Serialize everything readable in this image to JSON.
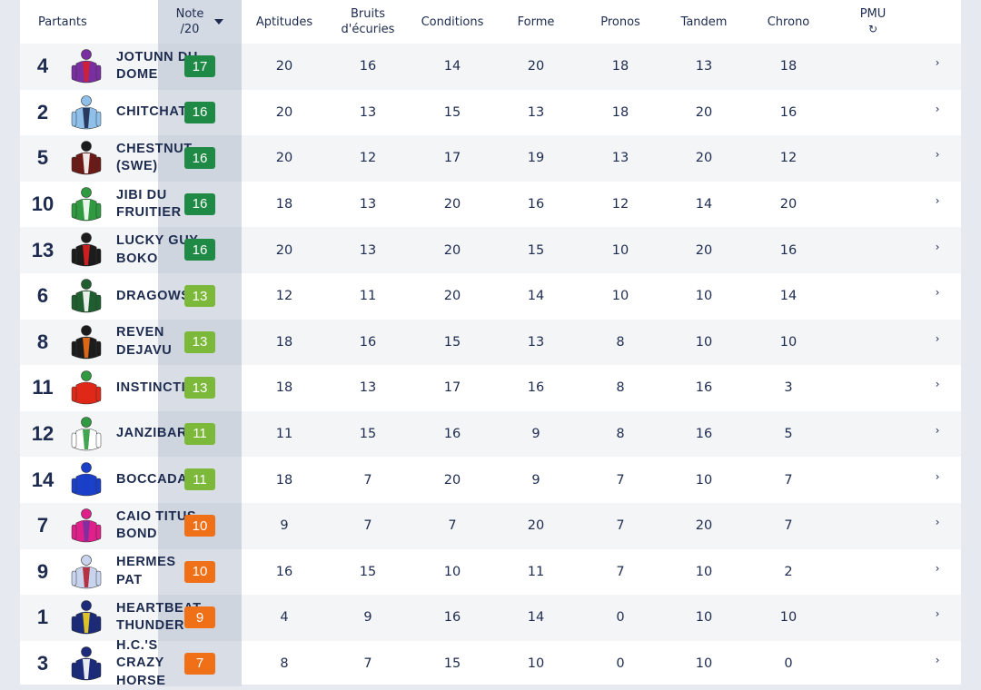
{
  "header": {
    "partants": "Partants",
    "note_line1": "Note",
    "note_line2": "/20",
    "aptitudes": "Aptitudes",
    "bruits_line1": "Bruits",
    "bruits_line2": "d'écuries",
    "conditions": "Conditions",
    "forme": "Forme",
    "pronos": "Pronos",
    "tandem": "Tandem",
    "chrono": "Chrono",
    "pmu": "PMU"
  },
  "colors": {
    "note_high": "#1f8a45",
    "note_mid": "#7cb83a",
    "note_low": "#f07018",
    "header_text": "#1d2b4f"
  },
  "rows": [
    {
      "num": "4",
      "name": "JOTUNN DU DOME",
      "note": "17",
      "note_level": "high",
      "silk": "purple-red-jockey-icon",
      "scores": [
        "20",
        "16",
        "14",
        "20",
        "18",
        "13",
        "18"
      ]
    },
    {
      "num": "2",
      "name": "CHITCHAT",
      "note": "16",
      "note_level": "high",
      "silk": "lightblue-jockey-icon",
      "scores": [
        "20",
        "13",
        "15",
        "13",
        "18",
        "20",
        "16"
      ]
    },
    {
      "num": "5",
      "name": "CHESTNUT (SWE)",
      "note": "16",
      "note_level": "high",
      "silk": "maroon-stripe-jockey-icon",
      "scores": [
        "20",
        "12",
        "17",
        "19",
        "13",
        "20",
        "12"
      ]
    },
    {
      "num": "10",
      "name": "JIBI DU FRUITIER",
      "note": "16",
      "note_level": "high",
      "silk": "green-jockey-icon",
      "scores": [
        "18",
        "13",
        "20",
        "16",
        "12",
        "14",
        "20"
      ]
    },
    {
      "num": "13",
      "name": "LUCKY GUY BOKO",
      "note": "16",
      "note_level": "high",
      "silk": "black-star-jockey-icon",
      "scores": [
        "20",
        "13",
        "20",
        "15",
        "10",
        "20",
        "16"
      ]
    },
    {
      "num": "6",
      "name": "DRAGOWS",
      "note": "13",
      "note_level": "mid",
      "silk": "darkgreen-stripe-jockey-icon",
      "scores": [
        "12",
        "11",
        "20",
        "14",
        "10",
        "10",
        "14"
      ]
    },
    {
      "num": "8",
      "name": "REVEN DEJAVU",
      "note": "13",
      "note_level": "mid",
      "silk": "black-orange-jockey-icon",
      "scores": [
        "18",
        "16",
        "15",
        "13",
        "8",
        "10",
        "10"
      ]
    },
    {
      "num": "11",
      "name": "INSTINCTIF",
      "note": "13",
      "note_level": "mid",
      "silk": "red-jockey-icon",
      "scores": [
        "18",
        "13",
        "17",
        "16",
        "8",
        "16",
        "3"
      ]
    },
    {
      "num": "12",
      "name": "JANZIBAR",
      "note": "11",
      "note_level": "mid",
      "silk": "green-white-diag-jockey-icon",
      "scores": [
        "11",
        "15",
        "16",
        "9",
        "8",
        "16",
        "5"
      ]
    },
    {
      "num": "14",
      "name": "BOCCADAMO",
      "note": "11",
      "note_level": "mid",
      "silk": "blue-jockey-icon",
      "scores": [
        "18",
        "7",
        "20",
        "9",
        "7",
        "10",
        "7"
      ]
    },
    {
      "num": "7",
      "name": "CAIO TITUS BOND",
      "note": "10",
      "note_level": "low",
      "silk": "pink-jockey-icon",
      "scores": [
        "9",
        "7",
        "7",
        "20",
        "7",
        "20",
        "7"
      ]
    },
    {
      "num": "9",
      "name": "HERMES PAT",
      "note": "10",
      "note_level": "low",
      "silk": "check-jockey-icon",
      "scores": [
        "16",
        "15",
        "10",
        "11",
        "7",
        "10",
        "2"
      ]
    },
    {
      "num": "1",
      "name": "HEARTBEAT THUNDER",
      "note": "9",
      "note_level": "low",
      "silk": "navy-yellow-jockey-icon",
      "scores": [
        "4",
        "9",
        "16",
        "14",
        "0",
        "10",
        "10"
      ]
    },
    {
      "num": "3",
      "name": "H.C.'S CRAZY HORSE",
      "note": "7",
      "note_level": "low",
      "silk": "navy-white-chevron-jockey-icon",
      "scores": [
        "8",
        "7",
        "15",
        "10",
        "0",
        "10",
        "0"
      ]
    }
  ]
}
